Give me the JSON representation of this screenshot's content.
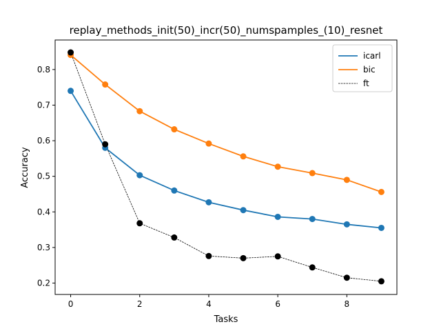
{
  "chart_data": {
    "type": "line",
    "title": "replay_methods_init(50)_incr(50)_numspamples_(10)_resnet",
    "xlabel": "Tasks",
    "ylabel": "Accuracy",
    "x": [
      0,
      1,
      2,
      3,
      4,
      5,
      6,
      7,
      8,
      9
    ],
    "xlim": [
      -0.45,
      9.45
    ],
    "ylim": [
      0.168,
      0.883
    ],
    "xticks": [
      0,
      2,
      4,
      6,
      8
    ],
    "yticks": [
      0.2,
      0.3,
      0.4,
      0.5,
      0.6,
      0.7,
      0.8
    ],
    "grid": false,
    "legend_position": "top-right",
    "series": [
      {
        "name": "icarl",
        "color": "#1f77b4",
        "line_style": "solid",
        "values": [
          0.74,
          0.58,
          0.503,
          0.46,
          0.427,
          0.405,
          0.386,
          0.38,
          0.365,
          0.355
        ]
      },
      {
        "name": "bic",
        "color": "#ff7f0e",
        "line_style": "solid",
        "values": [
          0.841,
          0.758,
          0.683,
          0.632,
          0.592,
          0.556,
          0.527,
          0.509,
          0.49,
          0.456
        ]
      },
      {
        "name": "ft",
        "color": "#000000",
        "line_style": "dashed",
        "values": [
          0.848,
          0.59,
          0.368,
          0.328,
          0.276,
          0.27,
          0.275,
          0.244,
          0.215,
          0.205
        ]
      }
    ]
  }
}
